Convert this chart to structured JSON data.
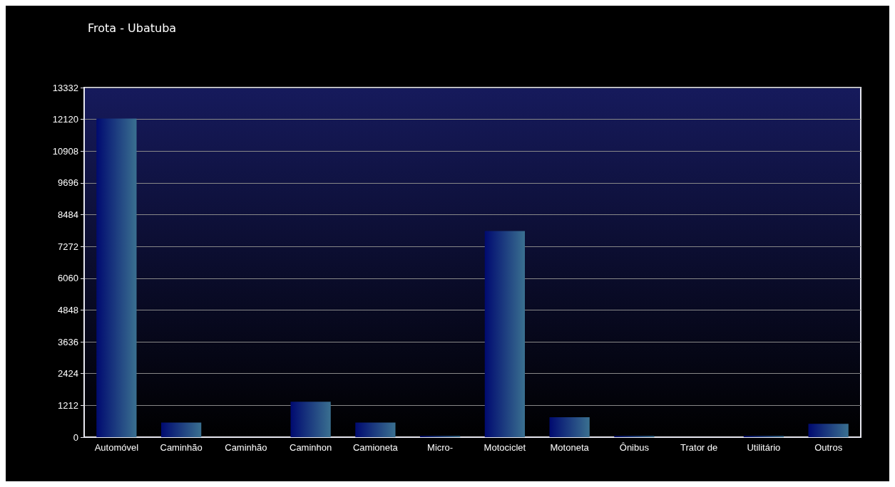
{
  "chart_data": {
    "type": "bar",
    "title": "Frota - Ubatuba",
    "categories": [
      "Automóvel",
      "Caminhão",
      "Caminhão",
      "Caminhon",
      "Camioneta",
      "Micro-",
      "Motociclet",
      "Motoneta",
      "Ônibus",
      "Trator de",
      "Utilitário",
      "Outros"
    ],
    "values": [
      12150,
      560,
      0,
      1350,
      560,
      50,
      7860,
      760,
      50,
      0,
      50,
      510
    ],
    "color": "#3a7090",
    "ylim": [
      0,
      13332
    ],
    "yticks": [
      0,
      1212,
      2424,
      3636,
      4848,
      6060,
      7272,
      8484,
      9696,
      10908,
      12120,
      13332
    ],
    "grid": "y"
  }
}
